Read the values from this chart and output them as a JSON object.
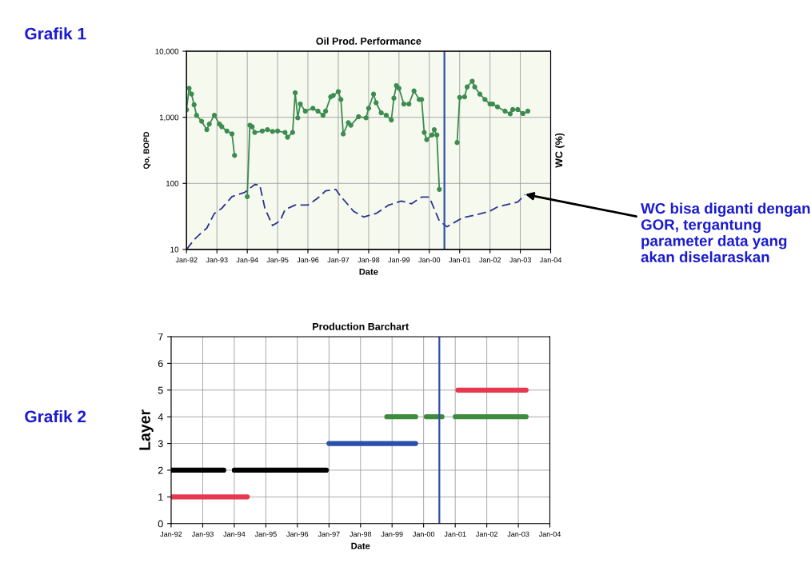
{
  "chart_data": [
    {
      "type": "line",
      "title": "Oil Prod. Performance",
      "xlabel": "Date",
      "ylabel": "Qo, BOPD",
      "y2label": "WC (%)",
      "log": "y",
      "grid": true,
      "xlim": [
        "1992-01",
        "2004-01"
      ],
      "xticks": [
        {
          "value": "1992-01",
          "label": "Jan-92"
        },
        {
          "value": "1993-01",
          "label": "Jan-93"
        },
        {
          "value": "1994-01",
          "label": "Jan-94"
        },
        {
          "value": "1995-01",
          "label": "Jan-95"
        },
        {
          "value": "1996-01",
          "label": "Jan-96"
        },
        {
          "value": "1997-01",
          "label": "Jan-97"
        },
        {
          "value": "1998-01",
          "label": "Jan-98"
        },
        {
          "value": "1999-01",
          "label": "Jan-99"
        },
        {
          "value": "2000-01",
          "label": "Jan-00"
        },
        {
          "value": "2001-01",
          "label": "Jan-01"
        },
        {
          "value": "2002-01",
          "label": "Jan-02"
        },
        {
          "value": "2003-01",
          "label": "Jan-03"
        },
        {
          "value": "2004-01",
          "label": "Jan-04"
        }
      ],
      "ylim": [
        10,
        10000
      ],
      "yticks": [
        10,
        100,
        {
          "value": 1000,
          "label": "1,000"
        },
        {
          "value": 10000,
          "label": "10,000"
        }
      ],
      "series": [
        {
          "color": "#3c8c50",
          "marker": "circle",
          "line_style": "solid",
          "x": [
            "1992-01",
            "1992-02",
            "1992-03",
            "1992-04",
            "1992-05",
            "1992-07",
            "1992-09",
            "1992-10",
            "1992-12",
            "1993-02",
            "1993-03",
            "1993-05",
            "1993-07",
            "1993-08",
            "1993-11",
            "1994-01",
            "1994-02",
            "1994-03",
            "1994-04",
            "1994-07",
            "1994-09",
            "1994-11",
            "1995-01",
            "1995-04",
            "1995-05",
            "1995-07",
            "1995-08",
            "1995-09",
            "1995-10",
            "1995-12",
            "1996-03",
            "1996-05",
            "1996-07",
            "1996-08",
            "1996-10",
            "1996-11",
            "1997-01",
            "1997-02",
            "1997-03",
            "1997-05",
            "1997-06",
            "1997-09",
            "1997-12",
            "1998-01",
            "1998-03",
            "1998-04",
            "1998-06",
            "1998-08",
            "1998-10",
            "1998-11",
            "1998-12",
            "1999-01",
            "1999-03",
            "1999-05",
            "1999-07",
            "1999-09",
            "1999-10",
            "1999-11",
            "1999-12",
            "2000-02",
            "2000-03",
            "2000-04",
            "2000-05",
            "2000-08",
            "2000-12",
            "2001-01",
            "2001-03",
            "2001-04",
            "2001-06",
            "2001-07",
            "2001-09",
            "2001-11",
            "2002-01",
            "2002-02",
            "2002-04",
            "2002-07",
            "2002-09",
            "2002-10",
            "2002-12",
            "2003-02",
            "2003-04"
          ],
          "values": [
            1300,
            2750,
            2250,
            1550,
            1070,
            870,
            650,
            790,
            1070,
            790,
            720,
            620,
            560,
            265,
            null,
            63,
            760,
            720,
            590,
            620,
            650,
            610,
            620,
            590,
            500,
            590,
            2350,
            980,
            1590,
            1240,
            1370,
            1240,
            1070,
            1240,
            2040,
            2140,
            2450,
            1860,
            560,
            830,
            760,
            1020,
            980,
            1370,
            2240,
            1660,
            1170,
            1070,
            910,
            1950,
            3020,
            2750,
            1590,
            1590,
            2510,
            1860,
            1860,
            590,
            460,
            540,
            650,
            540,
            81,
            null,
            415,
            2000,
            2040,
            2880,
            3520,
            2880,
            2240,
            1860,
            1590,
            1590,
            1440,
            1240,
            1130,
            1310,
            1310,
            1140,
            1240
          ]
        },
        {
          "color": "#2a3590",
          "marker": "none",
          "line_style": "dashed",
          "x": [
            "1992-01",
            "1992-04",
            "1992-07",
            "1992-09",
            "1992-12",
            "1993-03",
            "1993-07",
            "1993-12",
            "1994-04",
            "1994-06",
            "1994-08",
            "1994-11",
            "1995-02",
            "1995-04",
            "1995-08",
            "1996-01",
            "1996-05",
            "1996-08",
            "1996-12",
            "1997-02",
            "1997-04",
            "1997-07",
            "1997-11",
            "1998-04",
            "1998-09",
            "1999-02",
            "1999-06",
            "1999-10",
            "2000-01",
            "2000-05",
            "2000-08",
            "2001-02",
            "2001-07",
            "2002-01",
            "2002-04",
            "2002-09",
            "2002-12",
            "2003-03"
          ],
          "values": [
            10,
            14,
            18,
            21,
            35,
            42,
            63,
            73,
            96,
            94,
            42,
            23,
            27,
            40,
            47,
            47,
            60,
            77,
            81,
            63,
            52,
            38,
            31,
            35,
            47,
            54,
            49,
            62,
            62,
            27,
            22,
            30,
            33,
            38,
            44,
            49,
            52,
            68
          ]
        }
      ],
      "ref_lines": [
        {
          "axis": "x",
          "value": "2000-07",
          "color": "#2f4fa8"
        }
      ],
      "annotations": [
        "Grafik 1",
        {
          "text": "WC bisa diganti dengan GOR, tergantung parameter data yang akan diselaraskan",
          "x": "2003-03",
          "y": 68
        }
      ]
    },
    {
      "type": "line",
      "title": "Production Barchart",
      "xlabel": "Date",
      "ylabel": "Layer",
      "grid": true,
      "xlim": [
        "1992-01",
        "2004-01"
      ],
      "xticks": [
        {
          "value": "1992-01",
          "label": "Jan-92"
        },
        {
          "value": "1993-01",
          "label": "Jan-93"
        },
        {
          "value": "1994-01",
          "label": "Jan-94"
        },
        {
          "value": "1995-01",
          "label": "Jan-95"
        },
        {
          "value": "1996-01",
          "label": "Jan-96"
        },
        {
          "value": "1997-01",
          "label": "Jan-97"
        },
        {
          "value": "1998-01",
          "label": "Jan-98"
        },
        {
          "value": "1999-01",
          "label": "Jan-99"
        },
        {
          "value": "2000-01",
          "label": "Jan-00"
        },
        {
          "value": "2001-01",
          "label": "Jan-01"
        },
        {
          "value": "2002-01",
          "label": "Jan-02"
        },
        {
          "value": "2003-01",
          "label": "Jan-03"
        },
        {
          "value": "2004-01",
          "label": "Jan-04"
        }
      ],
      "ylim": [
        0,
        7
      ],
      "yticks": [
        0,
        1,
        2,
        3,
        4,
        5,
        6,
        7
      ],
      "series": [
        {
          "color": "#e8384f",
          "marker": "none",
          "line_style": "solid",
          "x": [
            "1992-01",
            "1994-06",
            "1997-01",
            "2001-02",
            "2003-04"
          ],
          "values": [
            1,
            1,
            null,
            5,
            5
          ]
        },
        {
          "color": "#000000",
          "marker": "none",
          "line_style": "solid",
          "x": [
            "1992-01",
            "1993-09",
            "1993-11",
            "1994-01",
            "1996-12"
          ],
          "values": [
            2,
            2,
            null,
            2,
            2
          ]
        },
        {
          "color": "#2b4ea8",
          "marker": "none",
          "line_style": "solid",
          "x": [
            "1997-01",
            "1999-10"
          ],
          "values": [
            3,
            3
          ]
        },
        {
          "color": "#3d8b3d",
          "marker": "none",
          "line_style": "solid",
          "x": [
            "1998-11",
            "1999-10",
            "1999-12",
            "2000-02",
            "2000-08",
            "2000-10",
            "2001-01",
            "2003-04"
          ],
          "values": [
            4,
            4,
            null,
            4,
            4,
            null,
            4,
            4
          ]
        }
      ],
      "ref_lines": [
        {
          "axis": "x",
          "value": "2000-07",
          "color": "#2f4fa8"
        }
      ],
      "annotations": [
        "Grafik 2"
      ]
    }
  ]
}
